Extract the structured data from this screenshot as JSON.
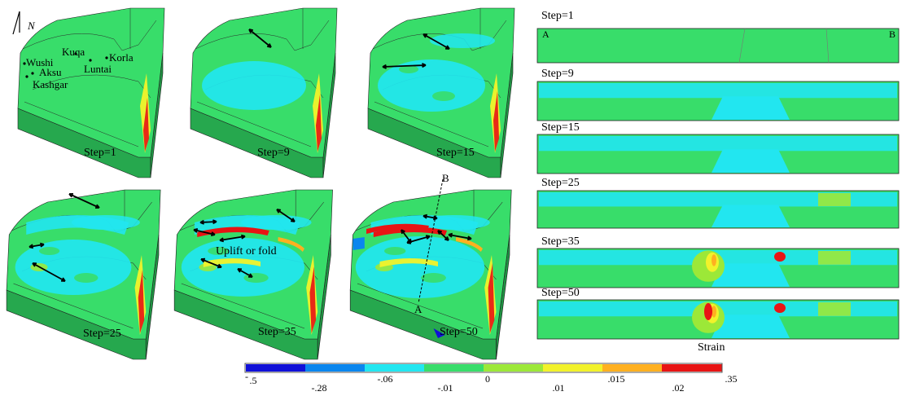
{
  "north_label": "N",
  "cities": [
    "Wushi",
    "Kuqa",
    "Korla",
    "Aksu",
    "Luntai",
    "Kashgar"
  ],
  "map_panels": [
    {
      "label": "Step=1"
    },
    {
      "label": "Step=9"
    },
    {
      "label": "Step=15"
    },
    {
      "label": "Step=25"
    },
    {
      "label": "Step=35"
    },
    {
      "label": "Step=50"
    }
  ],
  "uplift_label": "Uplift or fold",
  "profile_points": {
    "start": "A",
    "end": "B"
  },
  "profiles": [
    {
      "label": "Step=1"
    },
    {
      "label": "Step=9"
    },
    {
      "label": "Step=15"
    },
    {
      "label": "Step=25"
    },
    {
      "label": "Step=35"
    },
    {
      "label": "Step=50"
    }
  ],
  "colorbar": {
    "title": "Strain",
    "colors": [
      "#1010d8",
      "#0a86ee",
      "#22e6f0",
      "#38dd6a",
      "#9ce838",
      "#f2f22a",
      "#ffb020",
      "#e81414"
    ],
    "upper_ticks": [
      ".5",
      "-.06",
      "0",
      ".015",
      ".35"
    ],
    "upper_sign": "-",
    "lower_ticks": [
      "-.28",
      "-.01",
      ".01",
      ".02"
    ]
  },
  "colors": {
    "green": "#38dd6a",
    "cyan": "#22e6f0",
    "dark_green": "#26a84e"
  }
}
